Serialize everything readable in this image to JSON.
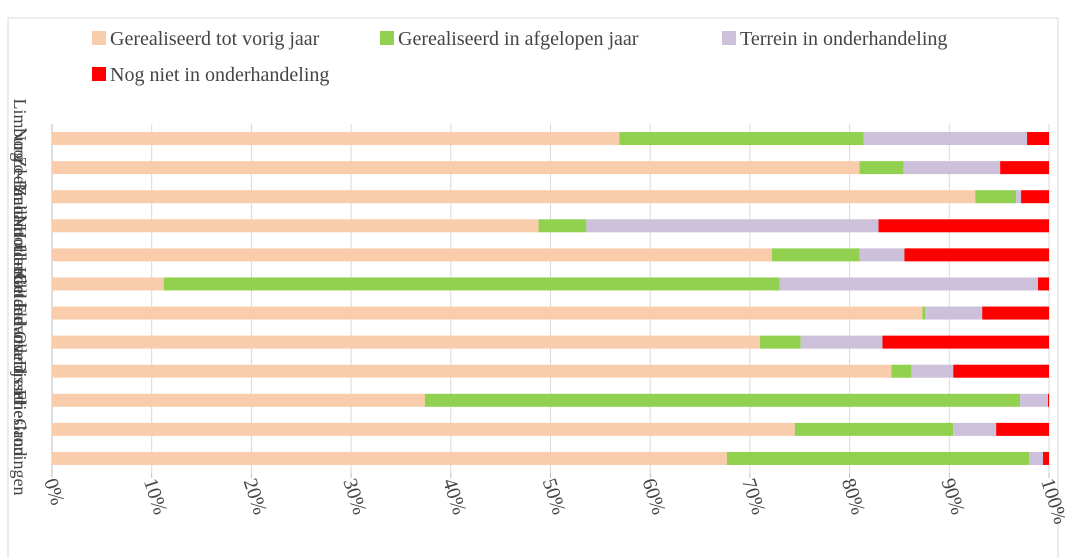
{
  "chart_data": {
    "type": "stacked-bar-horizontal",
    "categories": [
      "Groningen",
      "Friesland",
      "Drenthe",
      "Overijssel",
      "Flevoland",
      "Gelderland",
      "Utrecht",
      "Noord-Holland",
      "Zuid-Holland",
      "Zeeland",
      "Noord-Brabant",
      "Limburg"
    ],
    "series": [
      {
        "name": "Gerealiseerd tot vorig jaar",
        "color": "#f9cdab",
        "values": [
          67.7,
          74.5,
          37.4,
          84.2,
          71.0,
          87.3,
          11.2,
          72.2,
          48.8,
          92.6,
          81.0,
          56.9
        ]
      },
      {
        "name": "Gerealiseerd in afgelopen jaar",
        "color": "#92d050",
        "values": [
          30.3,
          15.9,
          59.7,
          2.0,
          4.1,
          0.3,
          61.8,
          8.8,
          4.8,
          4.1,
          4.4,
          24.5
        ]
      },
      {
        "name": "Terrein in onderhandeling",
        "color": "#ccc0da",
        "values": [
          1.4,
          4.3,
          2.8,
          4.2,
          8.2,
          5.7,
          25.9,
          4.5,
          29.3,
          0.5,
          9.7,
          16.4
        ]
      },
      {
        "name": "Nog niet in onderhandeling",
        "color": "#ff0000",
        "values": [
          0.6,
          5.3,
          0.1,
          9.6,
          16.7,
          6.7,
          1.1,
          14.5,
          17.1,
          2.8,
          4.9,
          2.2
        ]
      }
    ],
    "xlim": [
      0,
      100
    ],
    "xticks": [
      {
        "value": 0,
        "label": "0%"
      },
      {
        "value": 10,
        "label": "10%"
      },
      {
        "value": 20,
        "label": "20%"
      },
      {
        "value": 30,
        "label": "30%"
      },
      {
        "value": 40,
        "label": "40%"
      },
      {
        "value": 50,
        "label": "50%"
      },
      {
        "value": 60,
        "label": "60%"
      },
      {
        "value": 70,
        "label": "70%"
      },
      {
        "value": 80,
        "label": "80%"
      },
      {
        "value": 90,
        "label": "90%"
      },
      {
        "value": 100,
        "label": "100%"
      }
    ],
    "grid": true,
    "legend": "top"
  }
}
